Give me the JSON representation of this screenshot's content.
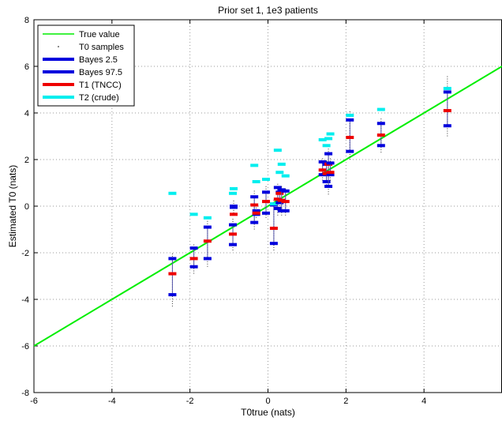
{
  "chart_data": {
    "type": "scatter",
    "title": "Prior set 1, 1e3 patients",
    "xlabel": "T0true (nats)",
    "ylabel": "Estimated T0 (nats)",
    "xlim": [
      -6,
      6
    ],
    "ylim": [
      -8,
      8
    ],
    "xticks": [
      "-6",
      "-4",
      "-2",
      "0",
      "2",
      "4"
    ],
    "yticks": [
      "-8",
      "-6",
      "-4",
      "-2",
      "0",
      "2",
      "4",
      "6",
      "8"
    ],
    "grid": true,
    "legend_position": "top-left",
    "legend": [
      {
        "label": "True value",
        "color": "#00ee00",
        "style": "line"
      },
      {
        "label": "T0 samples",
        "color": "#000000",
        "style": "dot"
      },
      {
        "label": "Bayes 2.5",
        "color": "#0000dd",
        "style": "thick"
      },
      {
        "label": "Bayes 97.5",
        "color": "#0000dd",
        "style": "thick"
      },
      {
        "label": "T1 (TNCC)",
        "color": "#ee0000",
        "style": "thick"
      },
      {
        "label": "T2 (crude)",
        "color": "#00eeee",
        "style": "thick"
      }
    ],
    "true_value_line": {
      "x": [
        -6,
        6
      ],
      "y": [
        -6,
        6
      ]
    },
    "points": [
      {
        "x": -2.45,
        "lo": -3.8,
        "hi": -2.25,
        "t1": -2.9,
        "t2": 0.55,
        "smin": -4.3,
        "smax": -2.0
      },
      {
        "x": -1.9,
        "lo": -2.6,
        "hi": -1.8,
        "t1": -2.25,
        "t2": -0.35,
        "smin": -2.9,
        "smax": -1.6
      },
      {
        "x": -1.55,
        "lo": -2.25,
        "hi": -0.9,
        "t1": -1.5,
        "t2": -0.5,
        "smin": -2.6,
        "smax": -0.6
      },
      {
        "x": -0.9,
        "lo": -1.65,
        "hi": -0.8,
        "t1": -1.2,
        "t2": 0.55,
        "smin": -1.9,
        "smax": -0.5
      },
      {
        "x": -0.88,
        "lo": -0.05,
        "hi": 0.0,
        "t1": -0.35,
        "t2": 0.75,
        "smin": -0.3,
        "smax": 0.3
      },
      {
        "x": -0.35,
        "lo": -0.7,
        "hi": 0.4,
        "t1": 0.05,
        "t2": 1.75,
        "smin": -1.0,
        "smax": 0.7
      },
      {
        "x": -0.3,
        "lo": -0.35,
        "hi": -0.2,
        "t1": -0.3,
        "t2": 1.05,
        "smin": -0.5,
        "smax": 0.0
      },
      {
        "x": -0.05,
        "lo": -0.3,
        "hi": 0.6,
        "t1": 0.2,
        "t2": 1.15,
        "smin": -0.5,
        "smax": 0.9
      },
      {
        "x": 0.15,
        "lo": -1.6,
        "hi": 0.05,
        "t1": -0.95,
        "t2": 0.1,
        "smin": -1.9,
        "smax": 0.3
      },
      {
        "x": 0.25,
        "lo": -0.1,
        "hi": 0.8,
        "t1": 0.3,
        "t2": 2.4,
        "smin": -0.4,
        "smax": 1.0
      },
      {
        "x": 0.3,
        "lo": 0.15,
        "hi": 0.6,
        "t1": 0.55,
        "t2": 1.45,
        "smin": 0.0,
        "smax": 0.8
      },
      {
        "x": 0.35,
        "lo": -0.2,
        "hi": 0.7,
        "t1": 0.25,
        "t2": 1.8,
        "smin": -0.4,
        "smax": 0.9
      },
      {
        "x": 0.45,
        "lo": -0.2,
        "hi": 0.65,
        "t1": 0.2,
        "t2": 1.3,
        "smin": -0.4,
        "smax": 0.8
      },
      {
        "x": 1.4,
        "lo": 1.35,
        "hi": 1.9,
        "t1": 1.55,
        "t2": 2.85,
        "smin": 1.1,
        "smax": 2.1
      },
      {
        "x": 1.5,
        "lo": 1.05,
        "hi": 1.8,
        "t1": 1.4,
        "t2": 2.6,
        "smin": 0.8,
        "smax": 2.0
      },
      {
        "x": 1.55,
        "lo": 0.85,
        "hi": 2.25,
        "t1": 1.8,
        "t2": 2.9,
        "smin": 0.5,
        "smax": 2.5
      },
      {
        "x": 1.6,
        "lo": 1.35,
        "hi": 1.85,
        "t1": 1.45,
        "t2": 3.1,
        "smin": 1.1,
        "smax": 2.1
      },
      {
        "x": 2.1,
        "lo": 2.35,
        "hi": 3.7,
        "t1": 2.95,
        "t2": 3.9,
        "smin": 2.0,
        "smax": 4.1
      },
      {
        "x": 2.9,
        "lo": 2.6,
        "hi": 3.55,
        "t1": 3.05,
        "t2": 4.15,
        "smin": 2.3,
        "smax": 3.8
      },
      {
        "x": 4.6,
        "lo": 3.45,
        "hi": 4.9,
        "t1": 4.1,
        "t2": 5.05,
        "smin": 3.0,
        "smax": 5.6
      }
    ]
  }
}
